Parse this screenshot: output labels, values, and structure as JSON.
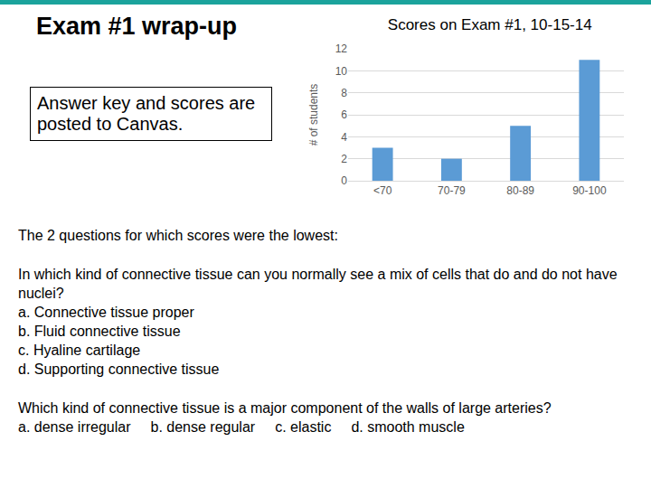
{
  "slide": {
    "title": "Exam #1 wrap-up",
    "note": "Answer key and scores are posted to Canvas.",
    "heading": "The 2 questions for which scores were the lowest:",
    "questions": [
      {
        "text": "In which kind of connective tissue can you normally see a mix of cells that do and do not have nuclei?",
        "options": [
          "a. Connective tissue proper",
          "b. Fluid connective tissue",
          "c. Hyaline cartilage",
          "d. Supporting connective tissue"
        ],
        "inline": false
      },
      {
        "text": "Which kind of connective tissue is a major component of the walls of large arteries?",
        "options": [
          "a. dense irregular",
          "b. dense regular",
          "c. elastic",
          "d. smooth muscle"
        ],
        "inline": true
      }
    ]
  },
  "chart_data": {
    "type": "bar",
    "title": "Scores on Exam #1, 10-15-14",
    "y_label": "# of students",
    "categories": [
      "<70",
      "70-79",
      "80-89",
      "90-100"
    ],
    "values": [
      3,
      2,
      5,
      11
    ],
    "color": "#5b9bd5",
    "ylim": [
      0,
      12
    ],
    "yticks": [
      0,
      2,
      4,
      6,
      8,
      10,
      12
    ],
    "grid": true
  }
}
